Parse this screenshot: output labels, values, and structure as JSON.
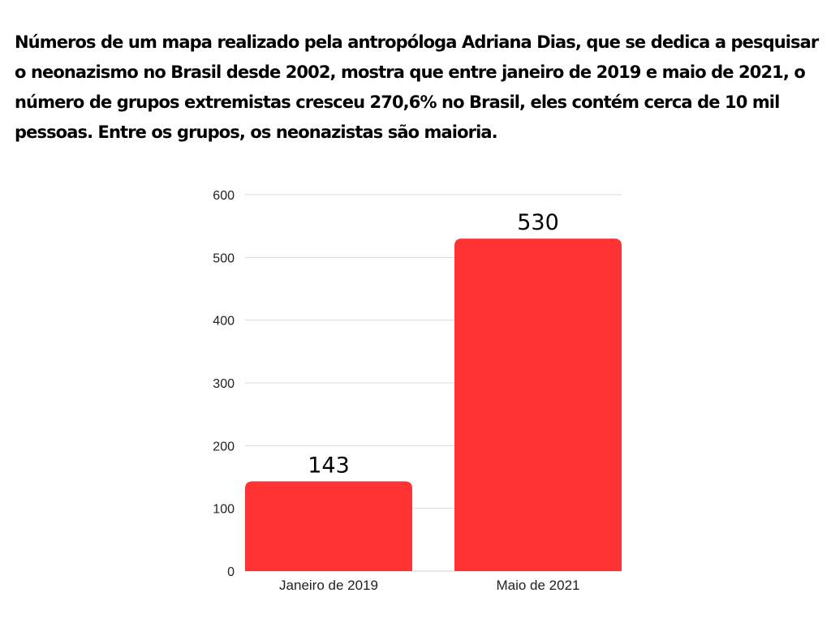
{
  "chart_data": {
    "type": "bar",
    "title": "Números de um mapa realizado pela antropóloga Adriana Dias, que se dedica a pesquisar o neonazismo no Brasil desde 2002, mostra que entre janeiro de 2019 e maio de 2021, o número de grupos extremistas cresceu 270,6% no Brasil, eles contém cerca de 10 mil pessoas. Entre os grupos, os neonazistas são maioria.",
    "categories": [
      "Janeiro de 2019",
      "Maio de 2021"
    ],
    "values": [
      143,
      530
    ],
    "data_labels": [
      "143",
      "530"
    ],
    "yticks": [
      0,
      100,
      200,
      300,
      400,
      500,
      600
    ],
    "ylim": [
      0,
      600
    ],
    "xlabel": "",
    "ylabel": "",
    "grid": true,
    "legend": "none",
    "bar_color": "#ff3333"
  }
}
